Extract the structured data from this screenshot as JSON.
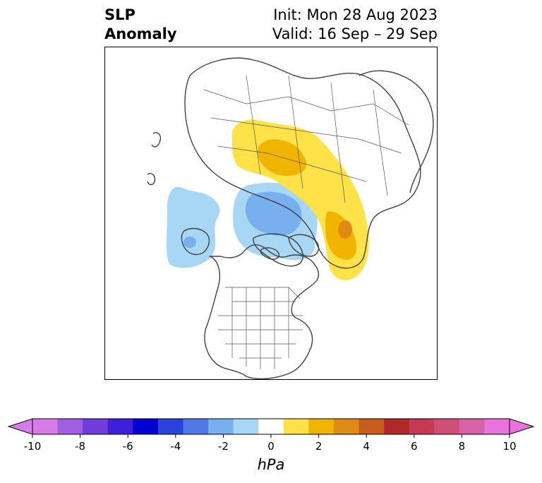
{
  "title": {
    "left_line1": "SLP",
    "left_line2": "Anomaly",
    "right_line1": "Init: Mon 28 Aug 2023",
    "right_line2": "Valid: 16 Sep – 29 Sep"
  },
  "colorbar": {
    "unit": "hPa",
    "ticks": [
      "-10",
      "-8",
      "-6",
      "-4",
      "-2",
      "0",
      "2",
      "4",
      "6",
      "8",
      "10"
    ],
    "colors": [
      "#d67ce9",
      "#a05fe0",
      "#6e3edc",
      "#3f1fd9",
      "#0000d2",
      "#2c42dc",
      "#4f78e6",
      "#78afef",
      "#a8d7f6",
      "#ffffff",
      "#ffe148",
      "#f1b400",
      "#de8a15",
      "#c85c1a",
      "#b22828",
      "#c33a52",
      "#cf4f76",
      "#d762a8",
      "#e873dc"
    ],
    "left_extend": "#d67ce9",
    "right_extend": "#e873dc"
  },
  "map": {
    "icon": "polar-stereographic-map",
    "anomalies": [
      {
        "label": "negative-anomaly-arctic",
        "level": "-2",
        "color": "#a8d7f6"
      },
      {
        "label": "negative-anomaly-core",
        "level": "-3",
        "color": "#78afef"
      },
      {
        "label": "negative-anomaly-pacific",
        "level": "-2",
        "color": "#a8d7f6"
      },
      {
        "label": "positive-anomaly-siberia",
        "level": "2",
        "color": "#ffe148"
      },
      {
        "label": "positive-anomaly-europe",
        "level": "3",
        "color": "#f1b400"
      },
      {
        "label": "positive-anomaly-core",
        "level": "4",
        "color": "#de8a15"
      }
    ]
  }
}
